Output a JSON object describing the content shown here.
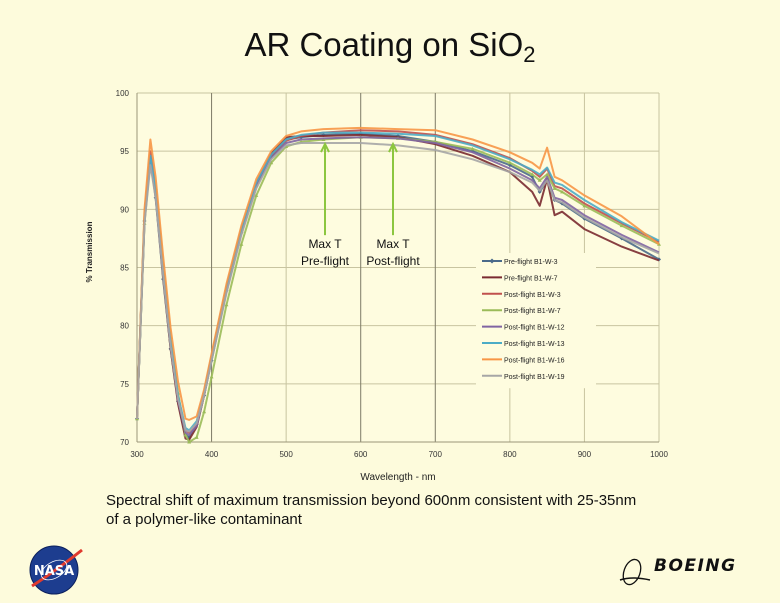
{
  "slide": {
    "title_main": "AR Coating on SiO",
    "title_sub": "2",
    "caption_line1": "Spectral shift of maximum transmission beyond 600nm consistent  with 25-35nm",
    "caption_line2": "of a polymer-like contaminant",
    "logo_left": "NASA",
    "logo_right": "BOEING"
  },
  "chart_data": {
    "type": "line",
    "title": "AR Coating on SiO2",
    "xlabel": "Wavelength - nm",
    "ylabel": "% Transmission",
    "xlim": [
      300,
      1000
    ],
    "ylim": [
      70,
      100
    ],
    "xticks": [
      300,
      400,
      500,
      600,
      700,
      800,
      900,
      1000
    ],
    "yticks": [
      70,
      75,
      80,
      85,
      90,
      95,
      100
    ],
    "grid": true,
    "legend_position": "center-right",
    "annotations": [
      {
        "text_line1": "Max T",
        "text_line2": "Pre-flight",
        "arrow_x": 555,
        "arrow_y_top": 95.7,
        "arrow_y_bottom": 89.5,
        "color": "#8cc63f"
      },
      {
        "text_line1": "Max T",
        "text_line2": "Post-flight",
        "arrow_x": 645,
        "arrow_y_top": 95.7,
        "arrow_y_bottom": 89.5,
        "color": "#8cc63f"
      }
    ],
    "series": [
      {
        "name": "Pre-flight B1-W-3",
        "color": "#4a6a8a",
        "marker": "diamond",
        "x": [
          300,
          310,
          318,
          325,
          335,
          345,
          355,
          365,
          370,
          380,
          390,
          400,
          420,
          440,
          460,
          480,
          500,
          520,
          550,
          600,
          650,
          700,
          750,
          800,
          830,
          840,
          850,
          860,
          870,
          900,
          950,
          1000
        ],
        "y": [
          72,
          89,
          94.3,
          91,
          84,
          78,
          73.5,
          70.6,
          70.4,
          71.5,
          74,
          77,
          83,
          88,
          92,
          94.5,
          96.0,
          96.2,
          96.4,
          96.5,
          96.3,
          95.8,
          95.0,
          93.8,
          92.8,
          91.5,
          92.5,
          90.8,
          90.5,
          89.2,
          87.5,
          85.7
        ]
      },
      {
        "name": "Pre-flight B1-W-7",
        "color": "#7a2a30",
        "marker": "none",
        "x": [
          300,
          310,
          318,
          325,
          335,
          345,
          355,
          365,
          370,
          380,
          390,
          400,
          420,
          440,
          460,
          480,
          500,
          520,
          550,
          600,
          650,
          700,
          750,
          800,
          830,
          840,
          850,
          860,
          870,
          900,
          950,
          1000
        ],
        "y": [
          72,
          89.5,
          94.5,
          91.2,
          84.2,
          78,
          73.3,
          70.3,
          70.2,
          71.3,
          74,
          77.3,
          83.3,
          88.3,
          92.3,
          94.8,
          96.2,
          96.3,
          96.3,
          96.4,
          96.2,
          95.6,
          94.6,
          93.2,
          91.5,
          90.3,
          92.6,
          89.5,
          89.8,
          88.3,
          86.8,
          85.6
        ]
      },
      {
        "name": "Post-flight B1-W-3",
        "color": "#c0504d",
        "marker": "none",
        "x": [
          300,
          310,
          318,
          325,
          335,
          345,
          355,
          365,
          370,
          380,
          390,
          400,
          420,
          440,
          460,
          480,
          500,
          520,
          550,
          600,
          650,
          700,
          750,
          800,
          830,
          840,
          850,
          860,
          870,
          900,
          950,
          1000
        ],
        "y": [
          72,
          89.3,
          95,
          91.8,
          84.8,
          78.5,
          73.8,
          71,
          70.8,
          71.6,
          74.2,
          77.3,
          83.2,
          88.2,
          92.2,
          94.6,
          95.9,
          96.3,
          96.6,
          96.8,
          96.7,
          96.4,
          95.6,
          94.4,
          93.3,
          92.8,
          93.5,
          92,
          91.8,
          90.5,
          88.8,
          87.2
        ]
      },
      {
        "name": "Post-flight B1-W-7",
        "color": "#9bbb59",
        "marker": "triangle",
        "x": [
          300,
          310,
          318,
          325,
          335,
          345,
          355,
          365,
          370,
          380,
          390,
          400,
          420,
          440,
          460,
          480,
          500,
          520,
          550,
          600,
          650,
          700,
          750,
          800,
          830,
          840,
          850,
          860,
          870,
          900,
          950,
          1000
        ],
        "y": [
          72,
          88.8,
          94.2,
          91.8,
          85.2,
          79,
          74.2,
          70.6,
          70.0,
          70.4,
          72.6,
          75.6,
          81.8,
          87,
          91.2,
          94,
          95.4,
          95.8,
          96.0,
          96.2,
          96.1,
          95.8,
          95.2,
          94.0,
          93.0,
          92.5,
          93.0,
          91.8,
          91.5,
          90.3,
          88.6,
          87.0
        ]
      },
      {
        "name": "Post-flight B1-W-12",
        "color": "#8064a2",
        "marker": "none",
        "x": [
          300,
          310,
          318,
          325,
          335,
          345,
          355,
          365,
          370,
          380,
          390,
          400,
          420,
          440,
          460,
          480,
          500,
          520,
          550,
          600,
          650,
          700,
          750,
          800,
          830,
          840,
          850,
          860,
          870,
          900,
          950,
          1000
        ],
        "y": [
          72,
          89,
          94.2,
          91.3,
          84.5,
          78.3,
          73.6,
          70.8,
          70.6,
          71.4,
          74,
          77.2,
          83,
          88,
          92,
          94.4,
          95.7,
          96.0,
          96.1,
          96.2,
          96.1,
          95.7,
          94.9,
          93.5,
          92.5,
          91.8,
          92.8,
          91,
          90.8,
          89.5,
          87.8,
          86.3
        ]
      },
      {
        "name": "Post-flight B1-W-13",
        "color": "#4bacc6",
        "marker": "none",
        "x": [
          300,
          310,
          318,
          325,
          335,
          345,
          355,
          365,
          370,
          380,
          390,
          400,
          420,
          440,
          460,
          480,
          500,
          520,
          550,
          600,
          650,
          700,
          750,
          800,
          830,
          840,
          850,
          860,
          870,
          900,
          950,
          1000
        ],
        "y": [
          72,
          89.2,
          94.6,
          91.7,
          84.9,
          78.7,
          74,
          71.2,
          71,
          71.8,
          74.3,
          77.4,
          83.3,
          88.3,
          92.3,
          94.7,
          96.0,
          96.4,
          96.6,
          96.6,
          96.5,
          96.3,
          95.5,
          94.3,
          93.4,
          93.0,
          93.6,
          92.3,
          92.1,
          90.8,
          88.9,
          87.3
        ]
      },
      {
        "name": "Post-flight B1-W-16",
        "color": "#f79646",
        "marker": "none",
        "x": [
          300,
          310,
          318,
          325,
          335,
          345,
          355,
          365,
          370,
          380,
          390,
          400,
          420,
          440,
          460,
          480,
          500,
          520,
          550,
          600,
          650,
          700,
          750,
          800,
          830,
          840,
          850,
          860,
          870,
          900,
          950,
          1000
        ],
        "y": [
          72,
          90,
          96.0,
          92.8,
          86,
          79.8,
          75.2,
          72.0,
          71.9,
          72.2,
          74.5,
          77.6,
          83.6,
          88.6,
          92.6,
          95.0,
          96.3,
          96.7,
          96.9,
          97.0,
          96.9,
          96.8,
          96.0,
          94.9,
          94.0,
          93.5,
          95.3,
          92.8,
          92.5,
          91.2,
          89.4,
          87.0
        ]
      },
      {
        "name": "Post-flight B1-W-19",
        "color": "#a6a6a6",
        "marker": "none",
        "x": [
          300,
          310,
          318,
          325,
          335,
          345,
          355,
          365,
          370,
          380,
          390,
          400,
          420,
          440,
          460,
          480,
          500,
          520,
          550,
          600,
          650,
          700,
          750,
          800,
          830,
          840,
          850,
          860,
          870,
          900,
          950,
          1000
        ],
        "y": [
          72,
          88.8,
          93.8,
          91.0,
          84.3,
          78.2,
          73.7,
          71.0,
          70.9,
          71.6,
          74,
          77,
          82.8,
          87.8,
          91.8,
          94.3,
          95.5,
          95.7,
          95.7,
          95.7,
          95.5,
          95.1,
          94.3,
          93.2,
          92.3,
          91.6,
          92.5,
          90.8,
          90.6,
          89.3,
          87.6,
          86.2
        ]
      }
    ]
  }
}
